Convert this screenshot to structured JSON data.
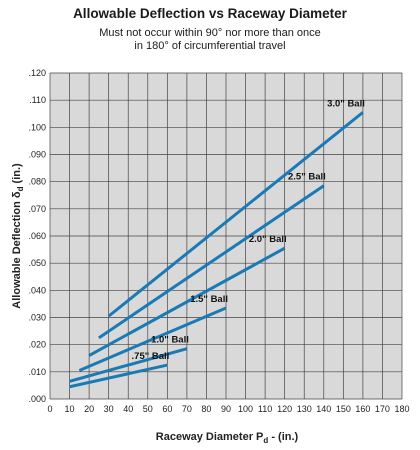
{
  "chart_data": {
    "type": "line",
    "title": "Allowable Deflection vs Raceway Diameter",
    "subtitle_lines": [
      "Must not occur within 90° nor more than once",
      "in 180° of circumferential travel"
    ],
    "xlabel_main": "Raceway Diameter P",
    "xlabel_sub": "d",
    "xlabel_tail": " - (in.)",
    "ylabel_main": "Allowable Deflection δ",
    "ylabel_sub": "d",
    "ylabel_tail": " (in.)",
    "xlim": [
      0,
      180
    ],
    "ylim": [
      0,
      0.12
    ],
    "x_ticks": [
      0,
      10,
      20,
      30,
      40,
      50,
      60,
      70,
      80,
      90,
      100,
      110,
      120,
      130,
      140,
      150,
      160,
      170,
      180
    ],
    "x_tick_labels": [
      "0",
      "10",
      "20",
      "30",
      "40",
      "50",
      "60",
      "70",
      "80",
      "90",
      "100",
      "110",
      "120",
      "130",
      "140",
      "150",
      "160",
      "170",
      "180"
    ],
    "y_ticks": [
      0,
      0.01,
      0.02,
      0.03,
      0.04,
      0.05,
      0.06,
      0.07,
      0.08,
      0.09,
      0.1,
      0.11,
      0.12
    ],
    "y_tick_labels": [
      ".000",
      ".010",
      ".020",
      ".030",
      ".040",
      ".050",
      ".060",
      ".070",
      ".080",
      ".090",
      ".100",
      ".110",
      ".120"
    ],
    "grid": true,
    "line_color": "#1a7ab5",
    "series": [
      {
        "name": ".75\" Ball",
        "x": [
          10,
          60
        ],
        "y": [
          0.0045,
          0.0125
        ]
      },
      {
        "name": "1.0\" Ball",
        "x": [
          10,
          70
        ],
        "y": [
          0.0065,
          0.0185
        ]
      },
      {
        "name": "1.5\" Ball",
        "x": [
          15,
          90
        ],
        "y": [
          0.0105,
          0.0335
        ]
      },
      {
        "name": "2.0\" Ball",
        "x": [
          20,
          120
        ],
        "y": [
          0.016,
          0.0555
        ]
      },
      {
        "name": "2.5\" Ball",
        "x": [
          25,
          140
        ],
        "y": [
          0.0225,
          0.0785
        ]
      },
      {
        "name": "3.0\" Ball",
        "x": [
          30,
          160
        ],
        "y": [
          0.0305,
          0.1055
        ]
      }
    ]
  }
}
